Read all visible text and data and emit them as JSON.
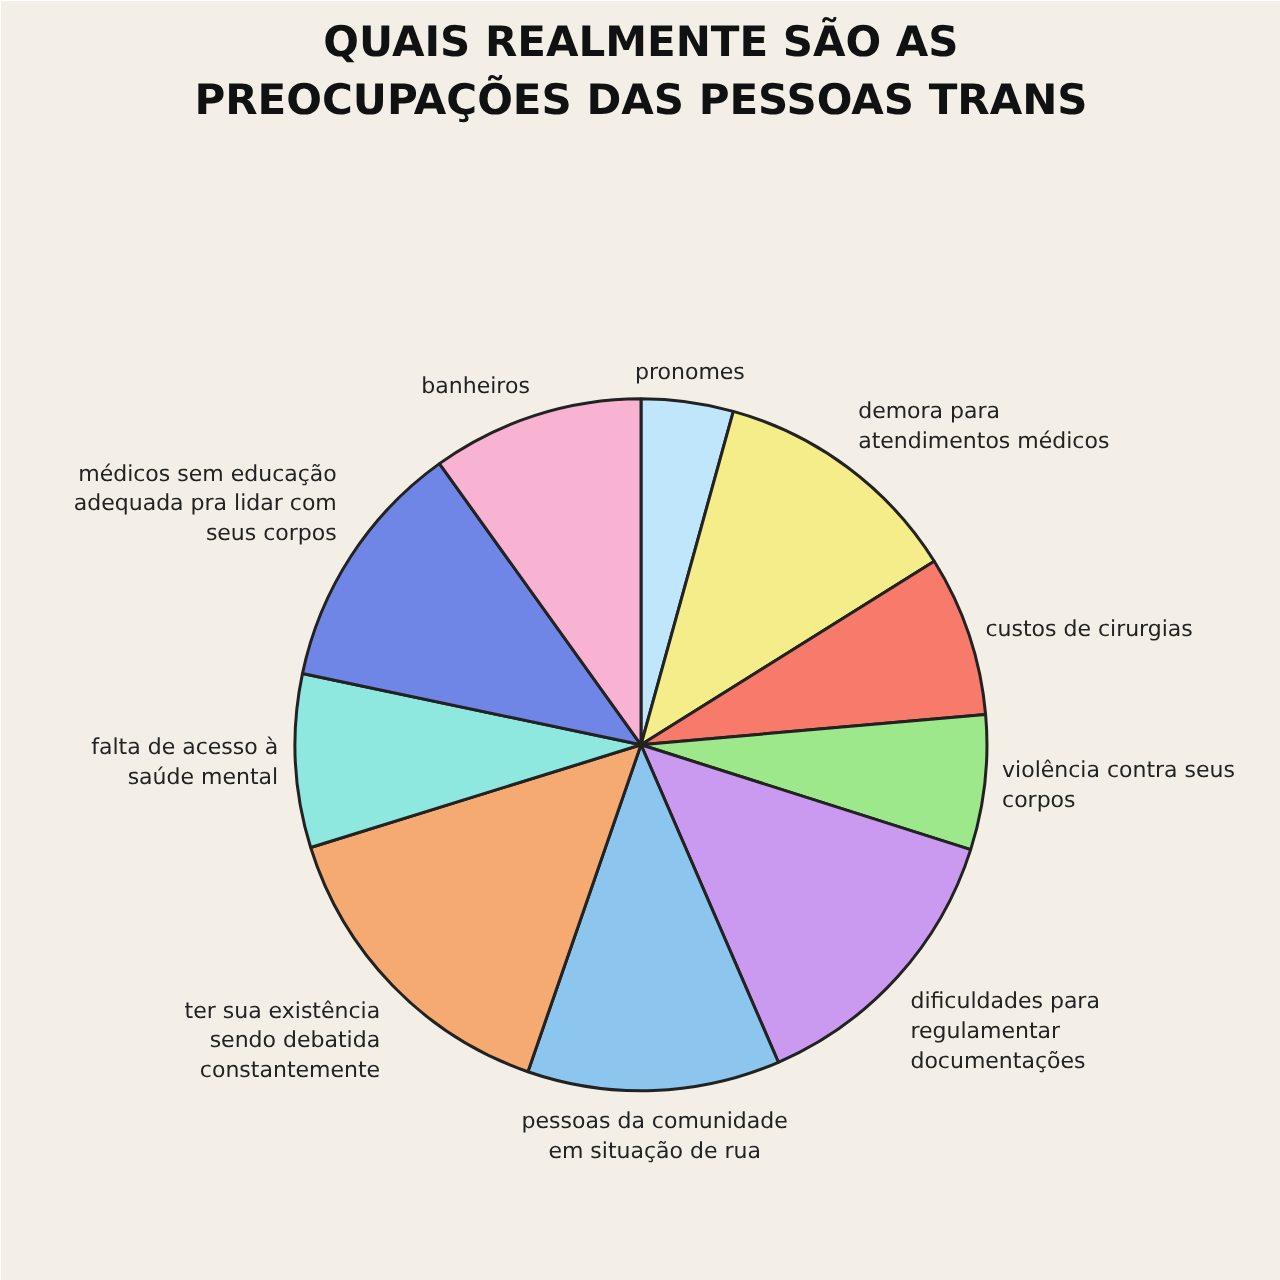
{
  "chart_data": {
    "type": "pie",
    "title": "QUAIS REALMENTE SÃO AS PREOCUPAÇÕES DAS PESSOAS TRANS",
    "categories": [
      "pronomes",
      "demora para atendimentos médicos",
      "custos de cirurgias",
      "violência contra seus corpos",
      "dificuldades para regulamentar documentações",
      "pessoas da comunidade em situação de rua",
      "ter sua existência sendo debatida constantemente",
      "falta de acesso à saúde mental",
      "médicos sem educação adequada pra lidar com seus corpos",
      "banheiros"
    ],
    "values": [
      4.3,
      11.8,
      7.5,
      6.3,
      13.6,
      11.8,
      14.9,
      8.1,
      11.8,
      9.9
    ],
    "colors": [
      "#bfe6fb",
      "#f5ec8a",
      "#f77a6b",
      "#9ce88a",
      "#c99af0",
      "#8cc6ee",
      "#f5aa72",
      "#8fe8e0",
      "#6f86e6",
      "#f8b3d2"
    ]
  }
}
